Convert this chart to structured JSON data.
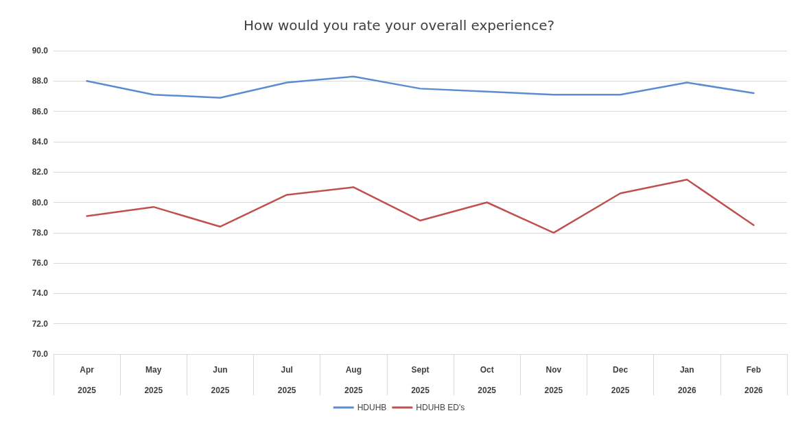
{
  "chart_data": {
    "type": "line",
    "title": "How would you rate your overall experience?",
    "categories": [
      "Apr\n2025",
      "May\n2025",
      "Jun\n2025",
      "Jul\n2025",
      "Aug\n2025",
      "Sept\n2025",
      "Oct\n2025",
      "Nov\n2025",
      "Dec\n2025",
      "Jan\n2026",
      "Feb\n2026"
    ],
    "series": [
      {
        "name": "HDUHB",
        "color": "#5b8bd0",
        "values": [
          88.0,
          87.1,
          86.9,
          87.9,
          88.3,
          87.5,
          87.3,
          87.1,
          87.1,
          87.9,
          87.2
        ]
      },
      {
        "name": "HDUHB ED's",
        "color": "#c0504d",
        "values": [
          79.1,
          79.7,
          78.4,
          80.5,
          81.0,
          78.8,
          80.0,
          78.0,
          80.6,
          81.5,
          78.5
        ]
      }
    ],
    "ylim": [
      70,
      90
    ],
    "yticks": [
      {
        "value": 70,
        "label": "70.0"
      },
      {
        "value": 72,
        "label": "72.0"
      },
      {
        "value": 74,
        "label": "74.0"
      },
      {
        "value": 76,
        "label": "76.0"
      },
      {
        "value": 78,
        "label": "78.0"
      },
      {
        "value": 80,
        "label": "80.0"
      },
      {
        "value": 82,
        "label": "82.0"
      },
      {
        "value": 84,
        "label": "84.0"
      },
      {
        "value": 86,
        "label": "86.0"
      },
      {
        "value": 88,
        "label": "88.0"
      },
      {
        "value": 90,
        "label": "90.0"
      }
    ],
    "grid": "y",
    "legend": "bottom",
    "marker": "none",
    "line_style": "solid"
  }
}
